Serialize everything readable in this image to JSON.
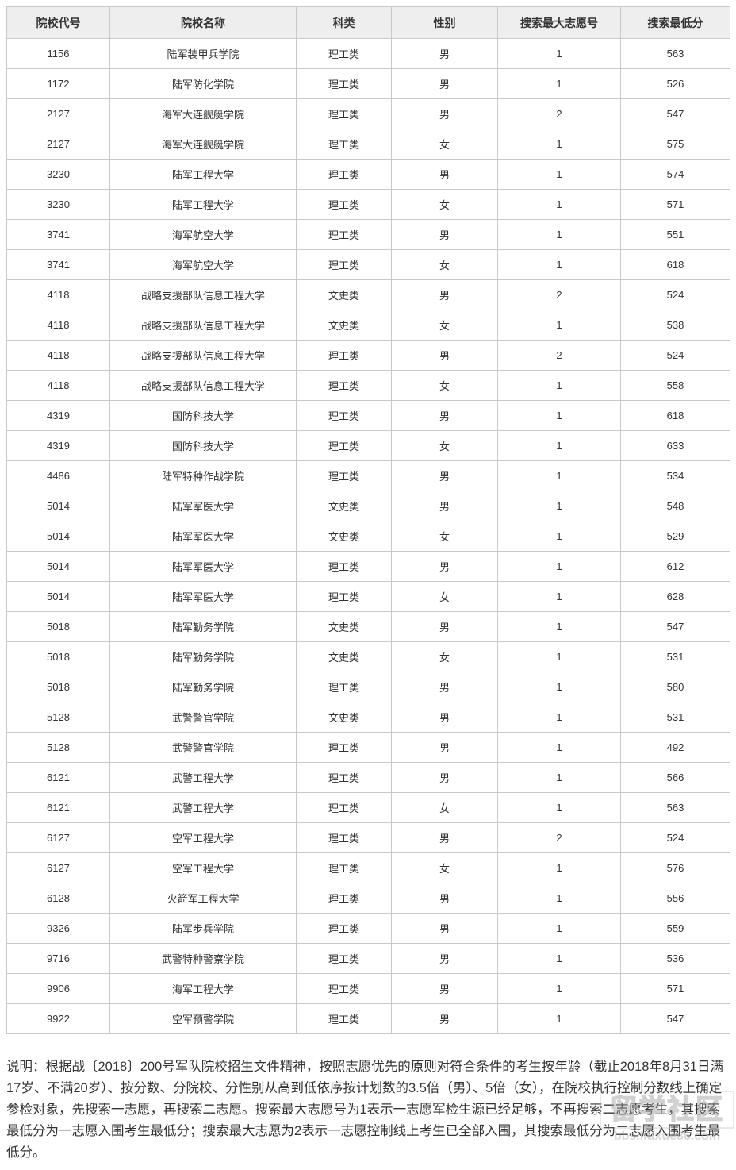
{
  "table": {
    "columns": [
      {
        "key": "code",
        "label": "院校代号"
      },
      {
        "key": "name",
        "label": "院校名称"
      },
      {
        "key": "category",
        "label": "科类"
      },
      {
        "key": "gender",
        "label": "性别"
      },
      {
        "key": "max_volunteer",
        "label": "搜索最大志愿号"
      },
      {
        "key": "min_score",
        "label": "搜索最低分"
      }
    ],
    "rows": [
      {
        "code": "1156",
        "name": "陆军装甲兵学院",
        "category": "理工类",
        "gender": "男",
        "max_volunteer": "1",
        "min_score": "563"
      },
      {
        "code": "1172",
        "name": "陆军防化学院",
        "category": "理工类",
        "gender": "男",
        "max_volunteer": "1",
        "min_score": "526"
      },
      {
        "code": "2127",
        "name": "海军大连舰艇学院",
        "category": "理工类",
        "gender": "男",
        "max_volunteer": "2",
        "min_score": "547"
      },
      {
        "code": "2127",
        "name": "海军大连舰艇学院",
        "category": "理工类",
        "gender": "女",
        "max_volunteer": "1",
        "min_score": "575"
      },
      {
        "code": "3230",
        "name": "陆军工程大学",
        "category": "理工类",
        "gender": "男",
        "max_volunteer": "1",
        "min_score": "574"
      },
      {
        "code": "3230",
        "name": "陆军工程大学",
        "category": "理工类",
        "gender": "女",
        "max_volunteer": "1",
        "min_score": "571"
      },
      {
        "code": "3741",
        "name": "海军航空大学",
        "category": "理工类",
        "gender": "男",
        "max_volunteer": "1",
        "min_score": "551"
      },
      {
        "code": "3741",
        "name": "海军航空大学",
        "category": "理工类",
        "gender": "女",
        "max_volunteer": "1",
        "min_score": "618"
      },
      {
        "code": "4118",
        "name": "战略支援部队信息工程大学",
        "category": "文史类",
        "gender": "男",
        "max_volunteer": "2",
        "min_score": "524"
      },
      {
        "code": "4118",
        "name": "战略支援部队信息工程大学",
        "category": "文史类",
        "gender": "女",
        "max_volunteer": "1",
        "min_score": "538"
      },
      {
        "code": "4118",
        "name": "战略支援部队信息工程大学",
        "category": "理工类",
        "gender": "男",
        "max_volunteer": "2",
        "min_score": "524"
      },
      {
        "code": "4118",
        "name": "战略支援部队信息工程大学",
        "category": "理工类",
        "gender": "女",
        "max_volunteer": "1",
        "min_score": "558"
      },
      {
        "code": "4319",
        "name": "国防科技大学",
        "category": "理工类",
        "gender": "男",
        "max_volunteer": "1",
        "min_score": "618"
      },
      {
        "code": "4319",
        "name": "国防科技大学",
        "category": "理工类",
        "gender": "女",
        "max_volunteer": "1",
        "min_score": "633"
      },
      {
        "code": "4486",
        "name": "陆军特种作战学院",
        "category": "理工类",
        "gender": "男",
        "max_volunteer": "1",
        "min_score": "534"
      },
      {
        "code": "5014",
        "name": "陆军军医大学",
        "category": "文史类",
        "gender": "男",
        "max_volunteer": "1",
        "min_score": "548"
      },
      {
        "code": "5014",
        "name": "陆军军医大学",
        "category": "文史类",
        "gender": "女",
        "max_volunteer": "1",
        "min_score": "529"
      },
      {
        "code": "5014",
        "name": "陆军军医大学",
        "category": "理工类",
        "gender": "男",
        "max_volunteer": "1",
        "min_score": "612"
      },
      {
        "code": "5014",
        "name": "陆军军医大学",
        "category": "理工类",
        "gender": "女",
        "max_volunteer": "1",
        "min_score": "628"
      },
      {
        "code": "5018",
        "name": "陆军勤务学院",
        "category": "文史类",
        "gender": "男",
        "max_volunteer": "1",
        "min_score": "547"
      },
      {
        "code": "5018",
        "name": "陆军勤务学院",
        "category": "文史类",
        "gender": "女",
        "max_volunteer": "1",
        "min_score": "531"
      },
      {
        "code": "5018",
        "name": "陆军勤务学院",
        "category": "理工类",
        "gender": "男",
        "max_volunteer": "1",
        "min_score": "580"
      },
      {
        "code": "5128",
        "name": "武警警官学院",
        "category": "文史类",
        "gender": "男",
        "max_volunteer": "1",
        "min_score": "531"
      },
      {
        "code": "5128",
        "name": "武警警官学院",
        "category": "理工类",
        "gender": "男",
        "max_volunteer": "1",
        "min_score": "492"
      },
      {
        "code": "6121",
        "name": "武警工程大学",
        "category": "理工类",
        "gender": "男",
        "max_volunteer": "1",
        "min_score": "566"
      },
      {
        "code": "6121",
        "name": "武警工程大学",
        "category": "理工类",
        "gender": "女",
        "max_volunteer": "1",
        "min_score": "563"
      },
      {
        "code": "6127",
        "name": "空军工程大学",
        "category": "理工类",
        "gender": "男",
        "max_volunteer": "2",
        "min_score": "524"
      },
      {
        "code": "6127",
        "name": "空军工程大学",
        "category": "理工类",
        "gender": "女",
        "max_volunteer": "1",
        "min_score": "576"
      },
      {
        "code": "6128",
        "name": "火箭军工程大学",
        "category": "理工类",
        "gender": "男",
        "max_volunteer": "1",
        "min_score": "556"
      },
      {
        "code": "9326",
        "name": "陆军步兵学院",
        "category": "理工类",
        "gender": "男",
        "max_volunteer": "1",
        "min_score": "559"
      },
      {
        "code": "9716",
        "name": "武警特种警察学院",
        "category": "理工类",
        "gender": "男",
        "max_volunteer": "1",
        "min_score": "536"
      },
      {
        "code": "9906",
        "name": "海军工程大学",
        "category": "理工类",
        "gender": "男",
        "max_volunteer": "1",
        "min_score": "571"
      },
      {
        "code": "9922",
        "name": "空军预警学院",
        "category": "理工类",
        "gender": "男",
        "max_volunteer": "1",
        "min_score": "547"
      }
    ]
  },
  "note": {
    "text": "说明：根据战〔2018〕200号军队院校招生文件精神，按照志愿优先的原则对符合条件的考生按年龄（截止2018年8月31日满17岁、不满20岁）、按分数、分院校、分性别从高到低依序按计划数的3.5倍（男）、5倍（女），在院校执行控制分数线上确定参检对象，先搜索一志愿，再搜索二志愿。搜索最大志愿号为1表示一志愿军检生源已经足够，不再搜索二志愿考生，其搜索最低分为一志愿入围考生最低分；搜索最大志愿为2表示一志愿控制线上考生已全部入围，其搜索最低分为二志愿入围考生最低分。"
  },
  "watermark": {
    "site_name": "留学社区",
    "url": "bbs.liuxue86.com"
  },
  "colors": {
    "header_bg": "#eeeeee",
    "border": "#c9c9c9",
    "text": "#333333",
    "watermark": "#a8a8a8"
  }
}
